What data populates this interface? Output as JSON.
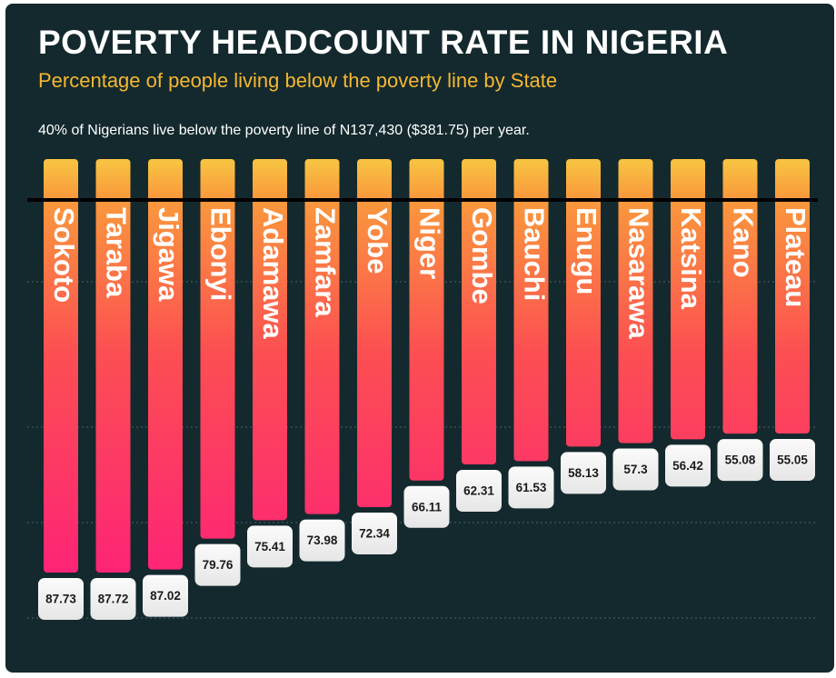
{
  "header": {
    "title": "POVERTY HEADCOUNT RATE IN NIGERIA",
    "subtitle": "Percentage of people living below the poverty line by State",
    "note": "40% of Nigerians live below the poverty line of N137,430 ($381.75) per year."
  },
  "colors": {
    "background": "#13292d",
    "bar_top": "#f7c142",
    "bar_mid": "#fb6a3a",
    "bar_bottom": "#fd2277",
    "baseline": "#000000",
    "value_box": "#f2f2f2",
    "title": "#ffffff",
    "subtitle": "#f5b731"
  },
  "chart_data": {
    "type": "bar",
    "orientation": "vertical",
    "title": "POVERTY HEADCOUNT RATE IN NIGERIA",
    "subtitle": "Percentage of people living below the poverty line by State",
    "xlabel": "",
    "ylabel": "",
    "categories": [
      "Sokoto",
      "Taraba",
      "Jigawa",
      "Ebonyi",
      "Adamawa",
      "Zamfara",
      "Yobe",
      "Niger",
      "Gombe",
      "Bauchi",
      "Enugu",
      "Nasarawa",
      "Katsina",
      "Kano",
      "Plateau"
    ],
    "values": [
      87.73,
      87.72,
      87.02,
      79.76,
      75.41,
      73.98,
      72.34,
      66.11,
      62.31,
      61.53,
      58.13,
      57.3,
      56.42,
      55.08,
      55.05
    ],
    "value_labels": [
      "87.73",
      "87.72",
      "87.02",
      "79.76",
      "75.41",
      "73.98",
      "72.34",
      "66.11",
      "62.31",
      "61.53",
      "58.13",
      "57.3",
      "56.42",
      "55.08",
      "55.05"
    ],
    "units": "%",
    "grid": true,
    "legend": "none"
  }
}
